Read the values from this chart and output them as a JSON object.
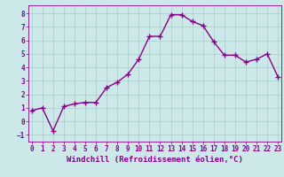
{
  "x": [
    0,
    1,
    2,
    3,
    4,
    5,
    6,
    7,
    8,
    9,
    10,
    11,
    12,
    13,
    14,
    15,
    16,
    17,
    18,
    19,
    20,
    21,
    22,
    23
  ],
  "y": [
    0.8,
    1.0,
    -0.7,
    1.1,
    1.3,
    1.4,
    1.4,
    2.5,
    2.9,
    3.5,
    4.6,
    6.3,
    6.3,
    7.9,
    7.9,
    7.4,
    7.1,
    5.9,
    4.9,
    4.9,
    4.4,
    4.6,
    5.0,
    3.3
  ],
  "line_color": "#880088",
  "marker": "+",
  "markersize": 4,
  "linewidth": 1.0,
  "xlim": [
    -0.3,
    23.3
  ],
  "ylim": [
    -1.5,
    8.6
  ],
  "yticks": [
    -1,
    0,
    1,
    2,
    3,
    4,
    5,
    6,
    7,
    8
  ],
  "xticks": [
    0,
    1,
    2,
    3,
    4,
    5,
    6,
    7,
    8,
    9,
    10,
    11,
    12,
    13,
    14,
    15,
    16,
    17,
    18,
    19,
    20,
    21,
    22,
    23
  ],
  "xlabel": "Windchill (Refroidissement éolien,°C)",
  "background_color": "#cce8e8",
  "grid_color": "#aacccc",
  "tick_color": "#880088",
  "label_color": "#880088",
  "tick_fontsize": 5.5,
  "xlabel_fontsize": 6.5,
  "markeredgewidth": 1.0
}
